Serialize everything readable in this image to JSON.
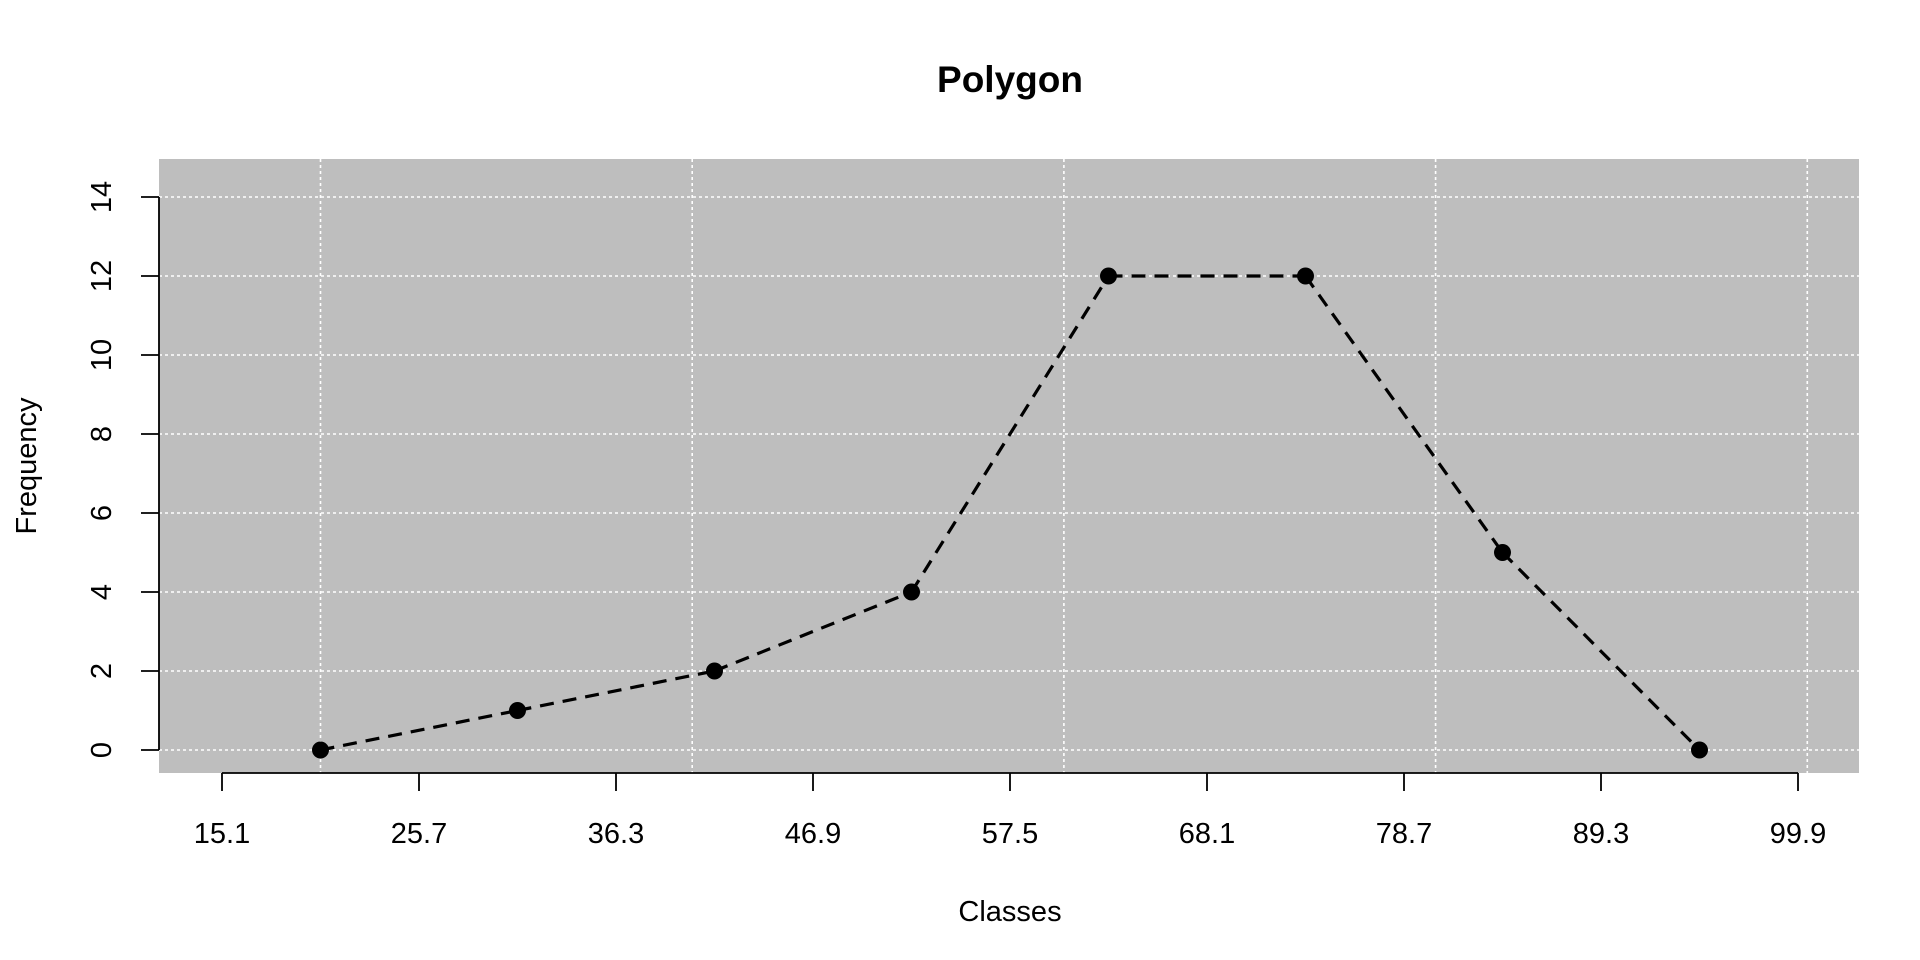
{
  "chart_data": {
    "type": "line",
    "title": "Polygon",
    "xlabel": "Classes",
    "ylabel": "Frequency",
    "x_ticks": [
      "15.1",
      "25.7",
      "36.3",
      "46.9",
      "57.5",
      "68.1",
      "78.7",
      "89.3",
      "99.9"
    ],
    "y_ticks": [
      "0",
      "2",
      "4",
      "6",
      "8",
      "10",
      "12",
      "14"
    ],
    "xlim": [
      15.1,
      99.9
    ],
    "ylim": [
      0,
      14
    ],
    "grid": true,
    "grid_x": [
      20.4,
      40.4,
      60.4,
      80.4,
      100.4
    ],
    "colors": {
      "plot_background": "#bebebe",
      "grid": "#ffffff",
      "line": "#000000",
      "points": "#000000"
    },
    "line_style": "dashed",
    "series": [
      {
        "x": [
          20.4,
          31.0,
          41.6,
          52.2,
          62.8,
          73.4,
          84.0,
          94.6
        ],
        "values": [
          0,
          1,
          2,
          4,
          12,
          12,
          5,
          0
        ]
      }
    ]
  }
}
